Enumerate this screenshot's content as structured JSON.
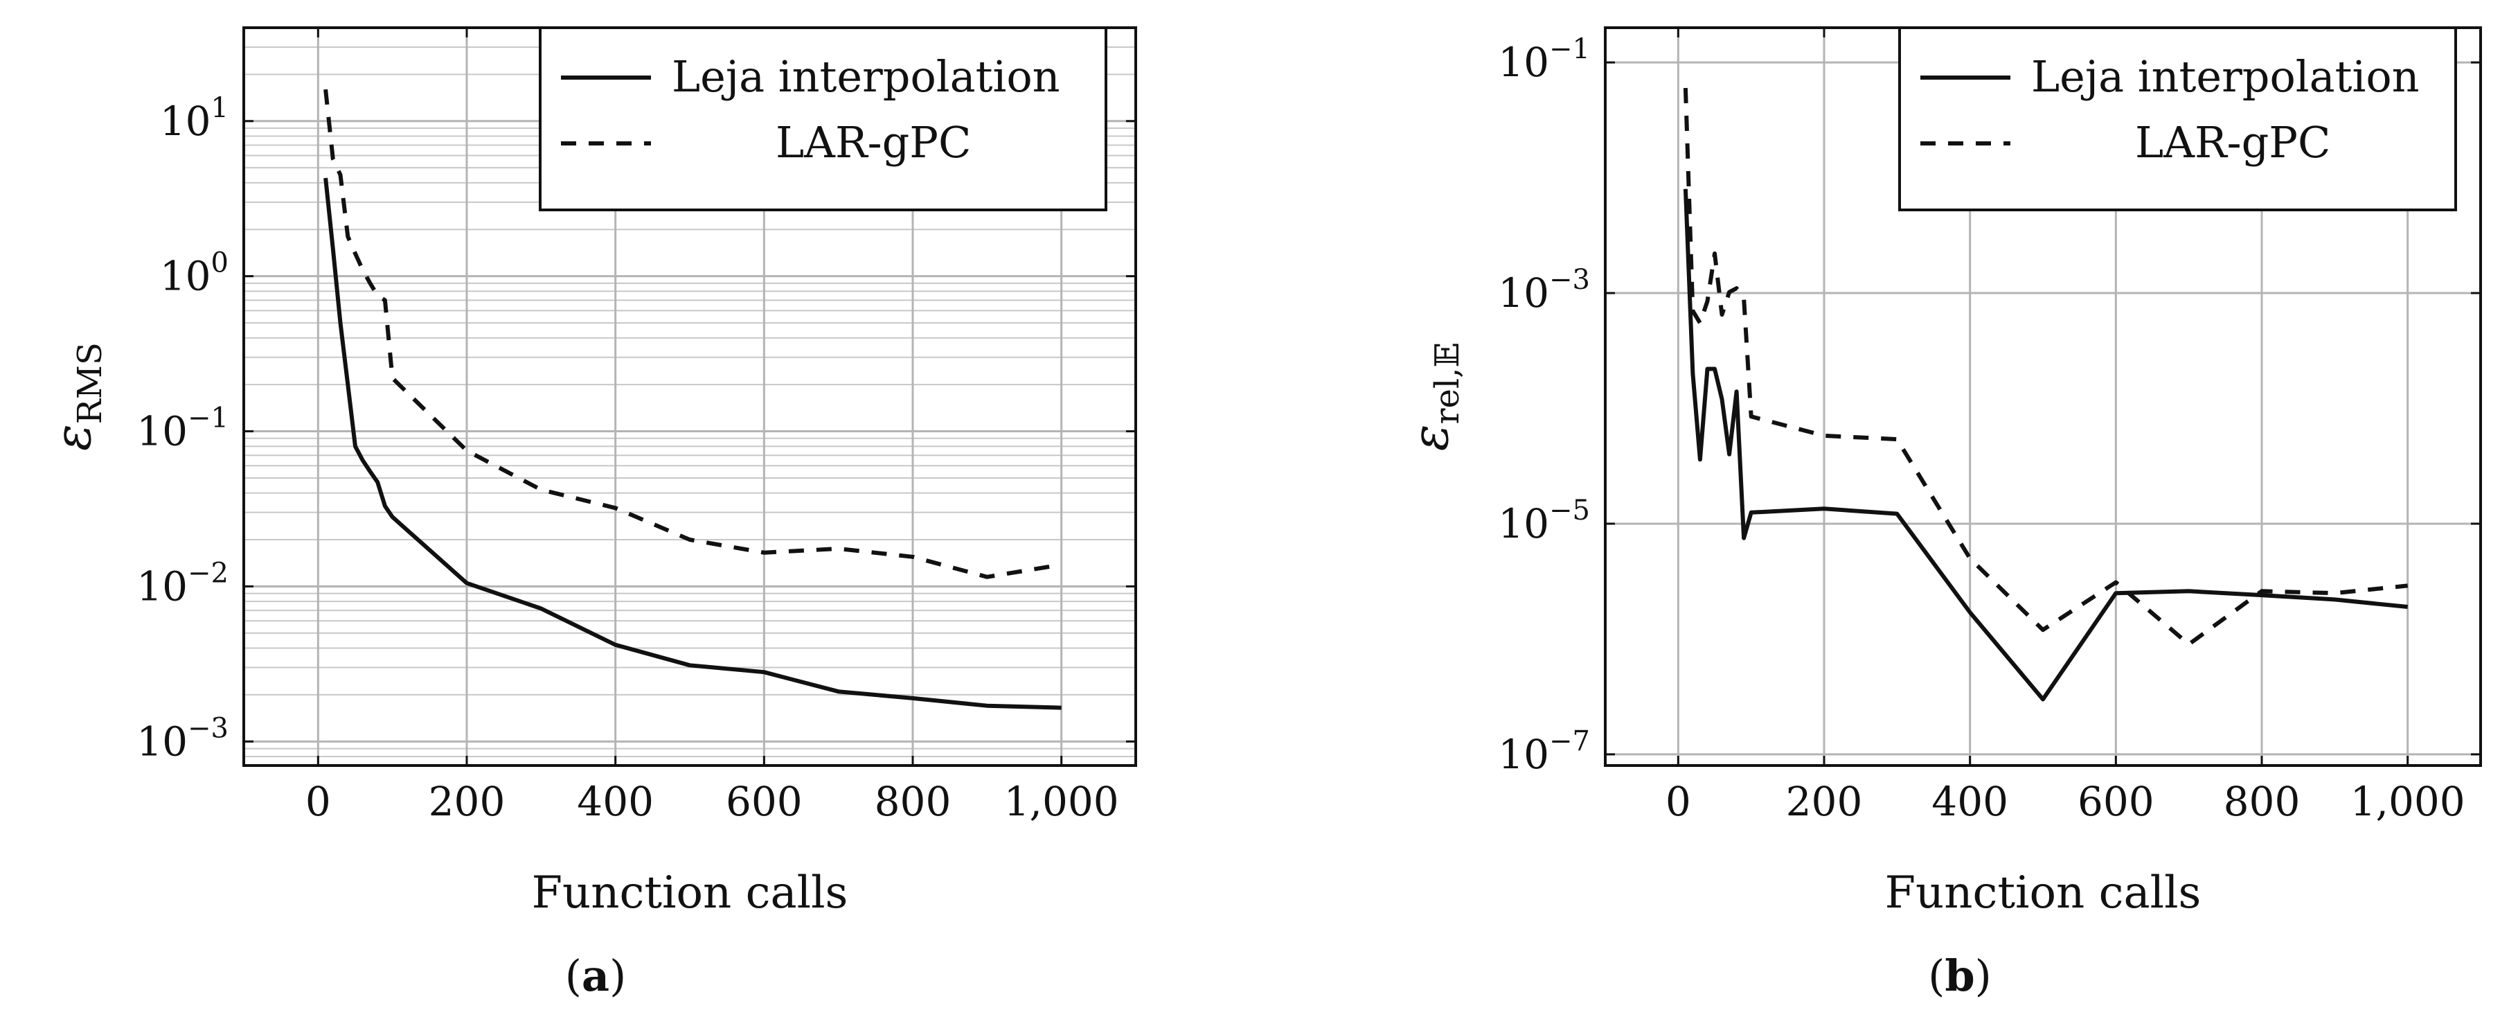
{
  "chart_data": [
    {
      "type": "line",
      "panel_label": "a",
      "xlabel": "Function calls",
      "ylabel": "ε",
      "ylabel_sub": "RMS",
      "x_scale": "linear",
      "y_scale": "log",
      "xlim": [
        -100,
        1100
      ],
      "ylim": [
        0.0007,
        40
      ],
      "xticks": [
        0,
        200,
        400,
        600,
        800,
        1000
      ],
      "xtick_labels": [
        "0",
        "200",
        "400",
        "600",
        "800",
        "1,000"
      ],
      "yticks": [
        0.001,
        0.01,
        0.1,
        1,
        10
      ],
      "ytick_labels": [
        {
          "base": "10",
          "exp": "−3"
        },
        {
          "base": "10",
          "exp": "−2"
        },
        {
          "base": "10",
          "exp": "−1"
        },
        {
          "base": "10",
          "exp": "0"
        },
        {
          "base": "10",
          "exp": "1"
        }
      ],
      "grid": true,
      "minor_grid": true,
      "legend_position": "top-right",
      "series": [
        {
          "name": "Leja interpolation",
          "style": "solid",
          "x": [
            10,
            20,
            30,
            40,
            50,
            60,
            70,
            80,
            90,
            100,
            200,
            300,
            400,
            500,
            600,
            700,
            800,
            900,
            1000
          ],
          "y": [
            4.3,
            1.5,
            0.5,
            0.2,
            0.08,
            0.065,
            0.055,
            0.047,
            0.033,
            0.028,
            0.0105,
            0.0072,
            0.0042,
            0.0031,
            0.0028,
            0.0021,
            0.0019,
            0.0017,
            0.00165
          ]
        },
        {
          "name": "LAR-gPC",
          "style": "dashed",
          "x": [
            10,
            20,
            30,
            40,
            50,
            60,
            70,
            80,
            90,
            100,
            200,
            300,
            400,
            500,
            600,
            700,
            800,
            900,
            1000
          ],
          "y": [
            16.0,
            5.7,
            4.5,
            1.8,
            1.4,
            1.1,
            0.9,
            0.75,
            0.7,
            0.22,
            0.075,
            0.042,
            0.032,
            0.02,
            0.0165,
            0.0175,
            0.0155,
            0.0115,
            0.0138
          ]
        }
      ]
    },
    {
      "type": "line",
      "panel_label": "b",
      "xlabel": "Function calls",
      "ylabel": "ε",
      "ylabel_sub": "rel,𝔼",
      "x_scale": "linear",
      "y_scale": "log",
      "xlim": [
        -100,
        1100
      ],
      "ylim": [
        8e-08,
        0.2
      ],
      "xticks": [
        0,
        200,
        400,
        600,
        800,
        1000
      ],
      "xtick_labels": [
        "0",
        "200",
        "400",
        "600",
        "800",
        "1,000"
      ],
      "yticks": [
        1e-07,
        1e-05,
        0.001,
        0.1
      ],
      "ytick_labels": [
        {
          "base": "10",
          "exp": "−7"
        },
        {
          "base": "10",
          "exp": "−5"
        },
        {
          "base": "10",
          "exp": "−3"
        },
        {
          "base": "10",
          "exp": "−1"
        }
      ],
      "grid": true,
      "minor_grid": false,
      "legend_position": "top-right",
      "series": [
        {
          "name": "Leja interpolation",
          "style": "solid",
          "x": [
            10,
            20,
            30,
            40,
            50,
            60,
            70,
            80,
            90,
            100,
            200,
            300,
            400,
            500,
            600,
            700,
            800,
            900,
            1000
          ],
          "y": [
            0.008,
            0.0002,
            3.6e-05,
            0.00022,
            0.00022,
            0.00012,
            4e-05,
            0.00014,
            7.5e-06,
            1.25e-05,
            1.35e-05,
            1.22e-05,
            1.7e-06,
            3e-07,
            2.5e-06,
            2.6e-06,
            2.4e-06,
            2.2e-06,
            1.9e-06
          ]
        },
        {
          "name": "LAR-gPC",
          "style": "dashed",
          "x": [
            10,
            20,
            30,
            40,
            50,
            60,
            70,
            80,
            90,
            100,
            200,
            300,
            400,
            500,
            600,
            700,
            800,
            900,
            1000
          ],
          "y": [
            0.06,
            0.0007,
            0.00055,
            0.00085,
            0.0022,
            0.00065,
            0.00102,
            0.0011,
            0.0009,
            8.5e-05,
            5.8e-05,
            5.4e-05,
            5e-06,
            1.2e-06,
            3.1e-06,
            9e-07,
            2.6e-06,
            2.5e-06,
            2.9e-06
          ]
        }
      ]
    }
  ]
}
